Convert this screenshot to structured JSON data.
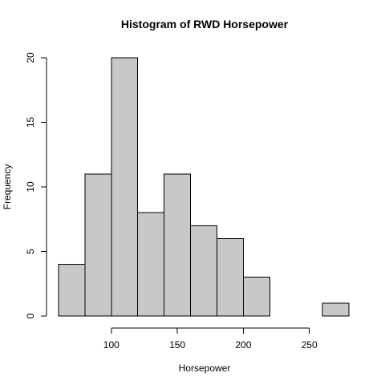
{
  "chart_data": {
    "type": "bar",
    "title": "Histogram of RWD Horsepower",
    "xlabel": "Horsepower",
    "ylabel": "Frequency",
    "bins": [
      {
        "start": 60,
        "end": 80,
        "count": 4
      },
      {
        "start": 80,
        "end": 100,
        "count": 11
      },
      {
        "start": 100,
        "end": 120,
        "count": 20
      },
      {
        "start": 120,
        "end": 140,
        "count": 8
      },
      {
        "start": 140,
        "end": 160,
        "count": 11
      },
      {
        "start": 160,
        "end": 180,
        "count": 7
      },
      {
        "start": 180,
        "end": 200,
        "count": 6
      },
      {
        "start": 200,
        "end": 220,
        "count": 3
      },
      {
        "start": 220,
        "end": 240,
        "count": 0
      },
      {
        "start": 240,
        "end": 260,
        "count": 0
      },
      {
        "start": 260,
        "end": 280,
        "count": 1
      }
    ],
    "xlim": [
      60,
      280
    ],
    "ylim": [
      0,
      20
    ],
    "x_ticks": [
      100,
      150,
      200,
      250
    ],
    "y_ticks": [
      0,
      5,
      10,
      15,
      20
    ],
    "grid": false,
    "bar_fill": "#c8c8c8",
    "bar_stroke": "#000000"
  }
}
